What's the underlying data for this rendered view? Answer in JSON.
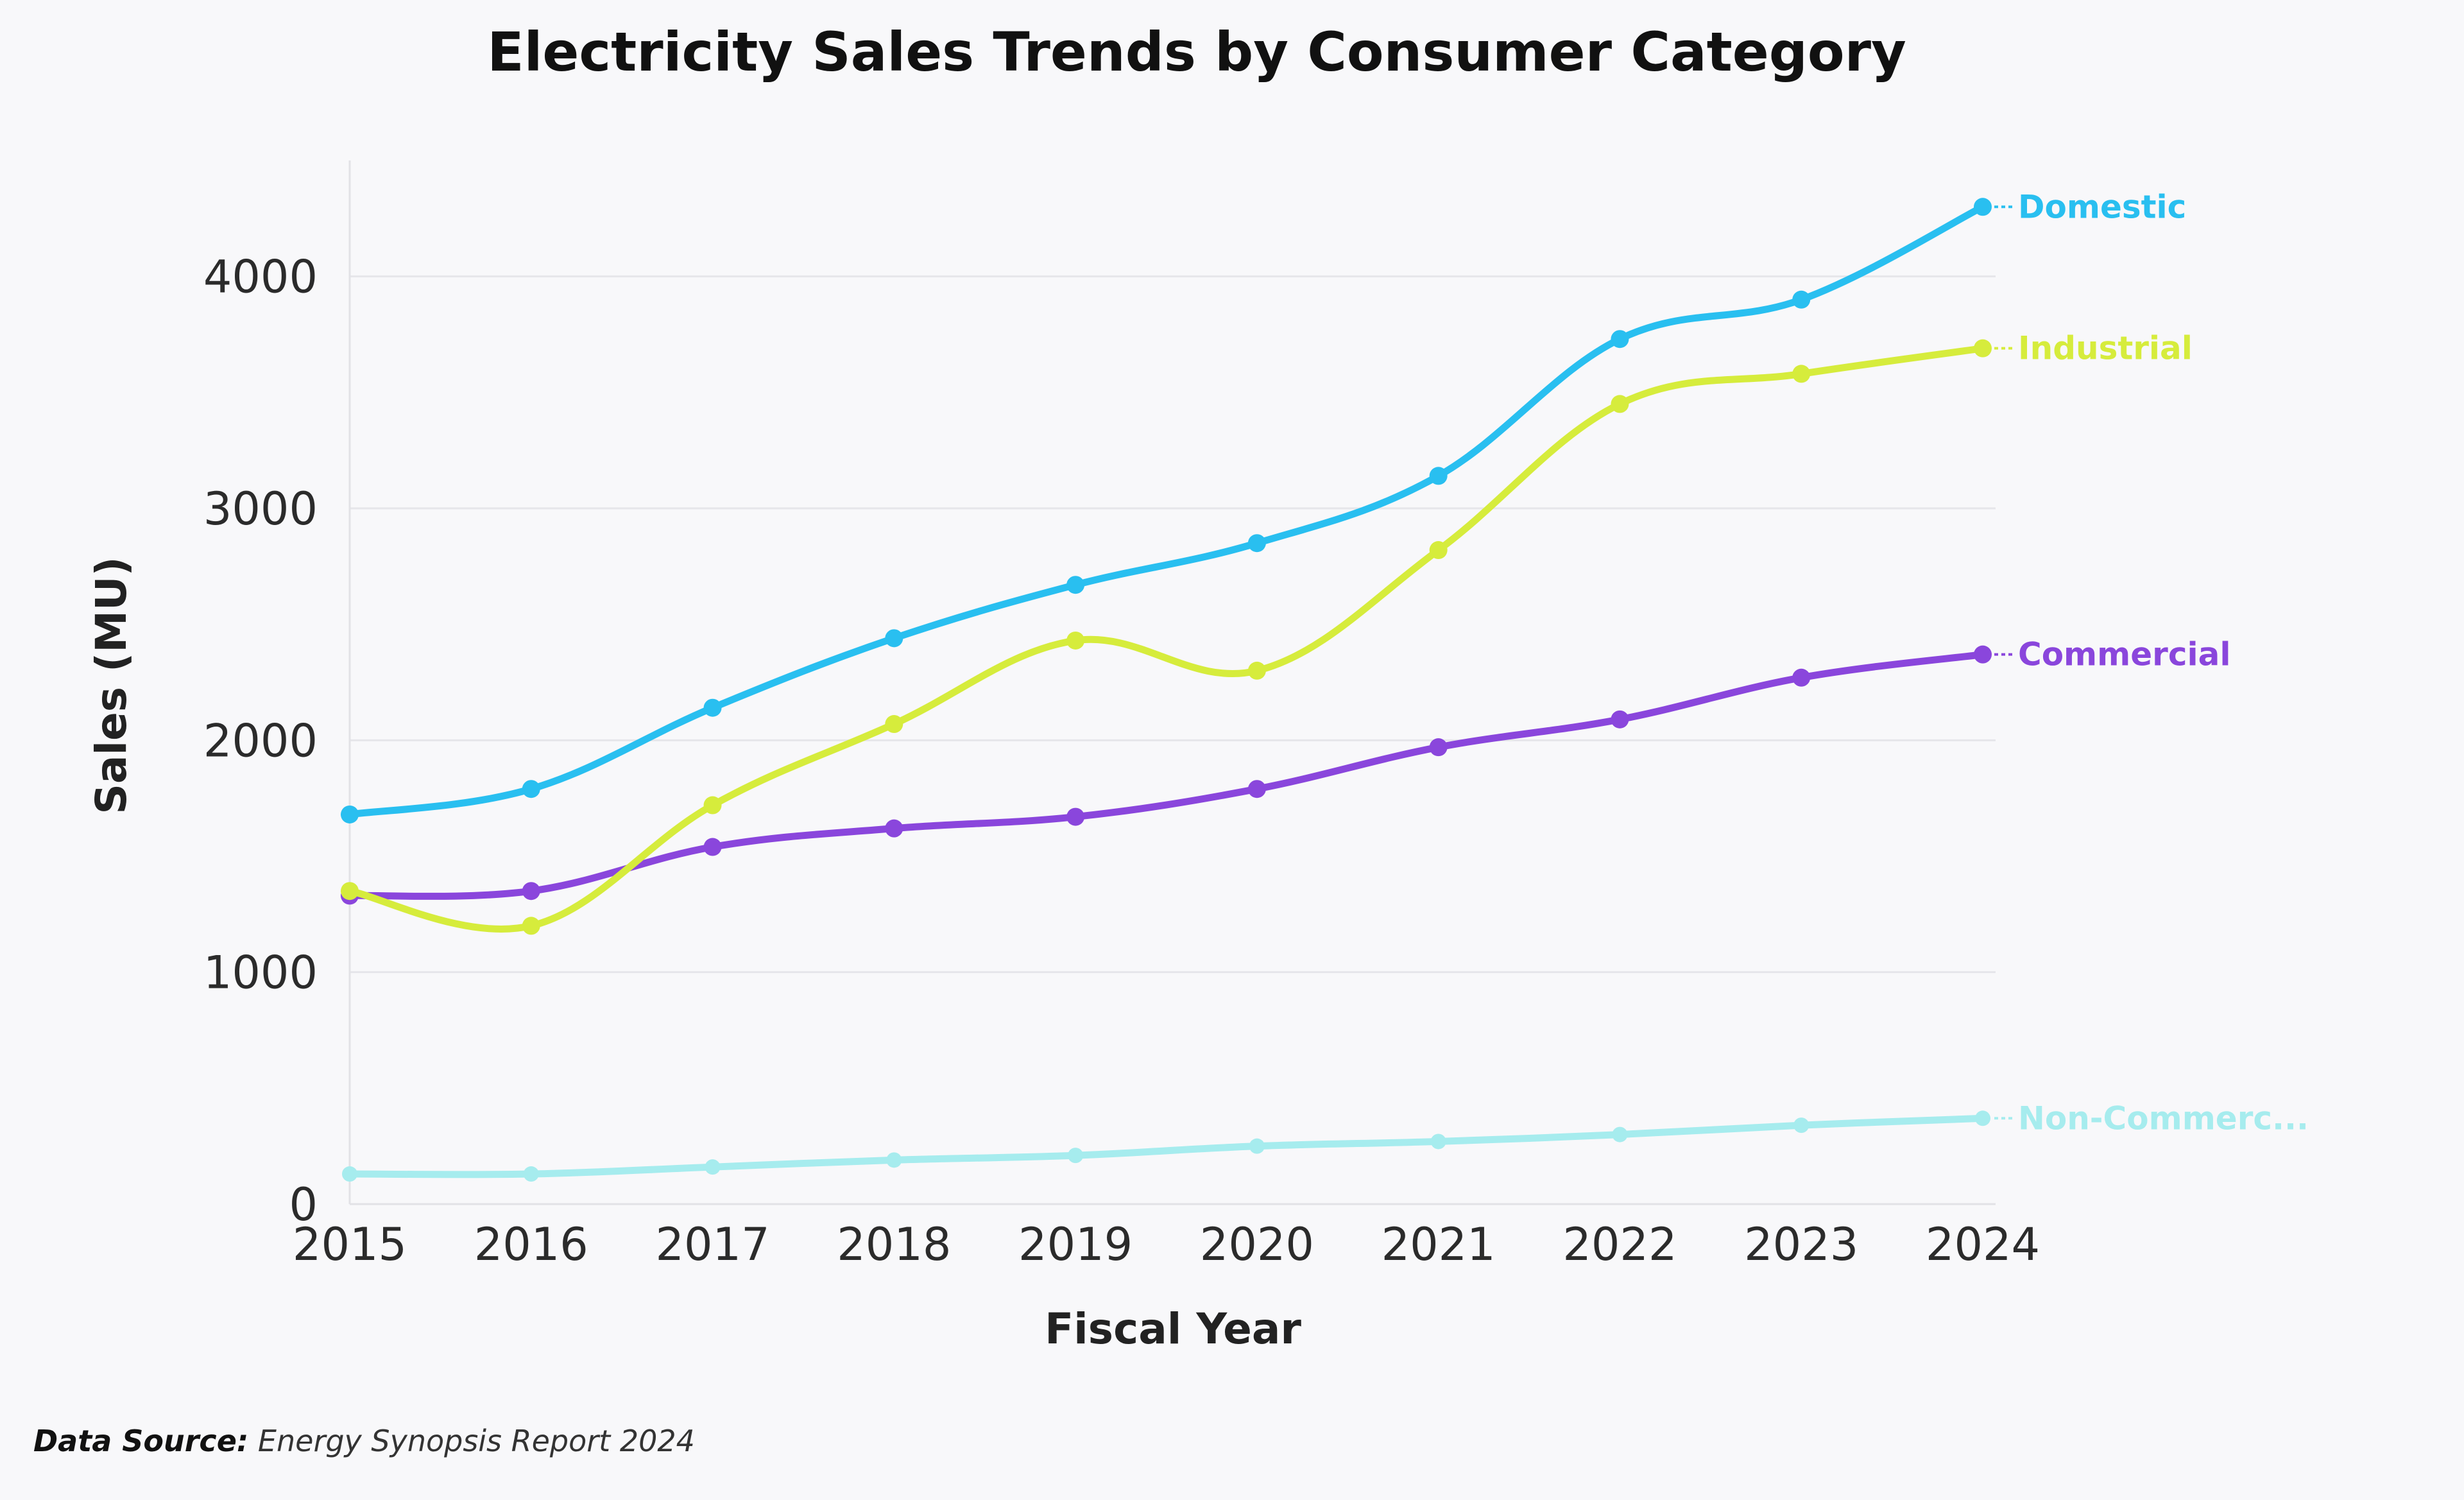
{
  "chart_data": {
    "type": "line",
    "title": "Electricity Sales Trends by Consumer Category",
    "xlabel": "Fiscal Year",
    "ylabel": "Sales (MU)",
    "x": [
      "2015",
      "2016",
      "2017",
      "2018",
      "2019",
      "2020",
      "2021",
      "2022",
      "2023",
      "2024"
    ],
    "yticks": [
      "0",
      "1000",
      "2000",
      "3000",
      "4000"
    ],
    "ylim": [
      0,
      4500
    ],
    "grid": true,
    "legend": "end-of-line labels",
    "series": [
      {
        "name": "Domestic",
        "color": "#29bff0",
        "values": [
          1680,
          1790,
          2140,
          2440,
          2670,
          2850,
          3140,
          3730,
          3900,
          4300
        ]
      },
      {
        "name": "Industrial",
        "color": "#d6ec3c",
        "values": [
          1350,
          1200,
          1720,
          2070,
          2430,
          2300,
          2820,
          3450,
          3580,
          3690
        ]
      },
      {
        "name": "Commercial",
        "color": "#8a46dc",
        "values": [
          1330,
          1350,
          1540,
          1620,
          1670,
          1790,
          1970,
          2090,
          2270,
          2370
        ]
      },
      {
        "name": "Non-Commerc...",
        "color": "#a6ecee",
        "values": [
          130,
          130,
          160,
          190,
          210,
          250,
          270,
          300,
          340,
          370
        ]
      }
    ]
  },
  "footer": {
    "source_label": "Data Source:",
    "source_text": " Energy Synopsis Report 2024"
  }
}
